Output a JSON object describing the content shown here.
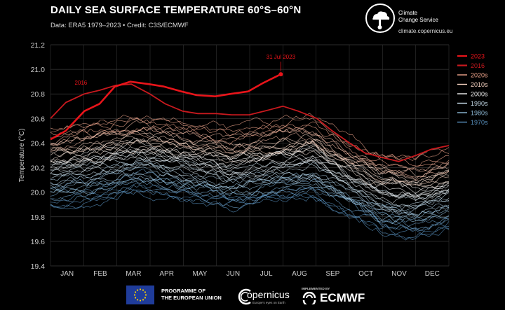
{
  "header": {
    "title": "DAILY SEA SURFACE TEMPERATURE 60°S–60°N",
    "subtitle": "Data: ERA5 1979–2023  •  Credit: C3S/ECMWF"
  },
  "branding": {
    "service_line1": "Climate",
    "service_line2": "Change Service",
    "url": "climate.copernicus.eu",
    "eu_line1": "PROGRAMME OF",
    "eu_line2": "THE EUROPEAN UNION",
    "copernicus": "opernicus",
    "copernicus_sub": "Europe's eyes on Earth",
    "implemented_by": "IMPLEMENTED BY",
    "ecmwf": "ECMWF"
  },
  "chart_data": {
    "type": "line",
    "title": "DAILY SEA SURFACE TEMPERATURE 60°S–60°N",
    "subtitle": "Data: ERA5 1979–2023  •  Credit: C3S/ECMWF",
    "ylabel": "Temperature (°C)",
    "xlabel": "",
    "ylim": [
      19.4,
      21.2
    ],
    "yticks": [
      19.4,
      19.6,
      19.8,
      20.0,
      20.2,
      20.4,
      20.6,
      20.8,
      21.0,
      21.2
    ],
    "ytick_labels": [
      "19.4",
      "19.6",
      "19.8",
      "20.0",
      "20.2",
      "20.4",
      "20.6",
      "20.8",
      "21.0",
      "21.2"
    ],
    "months": [
      "JAN",
      "FEB",
      "MAR",
      "APR",
      "MAY",
      "JUN",
      "JUL",
      "AUG",
      "SEP",
      "OCT",
      "NOV",
      "DEC"
    ],
    "grid": true,
    "legend_position": "top-right",
    "legend": [
      {
        "label": "2023",
        "color": "#e8141a"
      },
      {
        "label": "2016",
        "color": "#c8191e"
      },
      {
        "label": "2020s",
        "color": "#f0a58c"
      },
      {
        "label": "2010s",
        "color": "#f7d4c2"
      },
      {
        "label": "2000s",
        "color": "#f2f2f2"
      },
      {
        "label": "1990s",
        "color": "#c7ddeb"
      },
      {
        "label": "1980s",
        "color": "#8fbcd9"
      },
      {
        "label": "1970s",
        "color": "#5a93c2"
      }
    ],
    "annotations": [
      {
        "text": "31 Jul 2023",
        "x": "2023-07-31",
        "y": 20.96
      },
      {
        "text": "2016",
        "x": "2016-02-10",
        "y": 20.84
      }
    ],
    "series": [
      {
        "name": "2023",
        "color": "#e8141a",
        "x": [
          "2023-01-01",
          "2023-01-15",
          "2023-02-01",
          "2023-02-15",
          "2023-03-01",
          "2023-03-15",
          "2023-04-01",
          "2023-04-15",
          "2023-05-01",
          "2023-05-15",
          "2023-06-01",
          "2023-06-15",
          "2023-07-01",
          "2023-07-15",
          "2023-07-31"
        ],
        "y": [
          20.43,
          20.5,
          20.66,
          20.72,
          20.86,
          20.9,
          20.88,
          20.86,
          20.82,
          20.79,
          20.78,
          20.8,
          20.82,
          20.89,
          20.96
        ]
      },
      {
        "name": "2016",
        "color": "#c8191e",
        "x": [
          "2016-01-01",
          "2016-01-15",
          "2016-02-01",
          "2016-02-15",
          "2016-03-01",
          "2016-03-15",
          "2016-04-01",
          "2016-04-15",
          "2016-05-01",
          "2016-05-15",
          "2016-06-01",
          "2016-06-15",
          "2016-07-01",
          "2016-07-15",
          "2016-08-01",
          "2016-08-15",
          "2016-09-01",
          "2016-09-15",
          "2016-10-01",
          "2016-10-15",
          "2016-11-01",
          "2016-11-15",
          "2016-12-01",
          "2016-12-15",
          "2016-12-31"
        ],
        "y": [
          20.6,
          20.73,
          20.8,
          20.83,
          20.87,
          20.88,
          20.8,
          20.72,
          20.66,
          20.64,
          20.64,
          20.63,
          20.63,
          20.66,
          20.7,
          20.66,
          20.6,
          20.5,
          20.4,
          20.32,
          20.28,
          20.25,
          20.3,
          20.35,
          20.38
        ]
      }
    ]
  }
}
